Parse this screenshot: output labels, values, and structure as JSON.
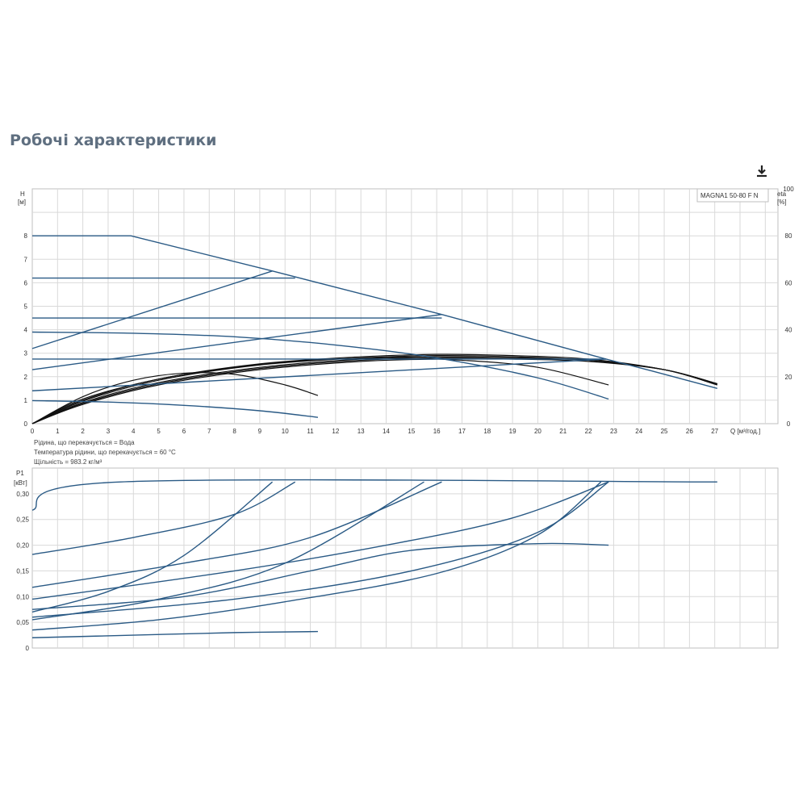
{
  "page": {
    "title": "Робочі характеристики",
    "download_icon": "download-icon"
  },
  "info_lines": [
    "Рідина, що перекачується = Вода",
    "Температура рідини, що перекачується = 60 °C",
    "Щільність = 983.2 кг/м³"
  ],
  "colors": {
    "curve_blue": "#2a5a85",
    "curve_black": "#111111",
    "grid": "#d9d9d9",
    "frame": "#bfbfbf"
  },
  "chart_data": [
    {
      "type": "line",
      "legend": "MAGNA1 50-80 F N",
      "ylabel": "H\n[м]",
      "y2label": "eta\n[%]",
      "xlabel": "Q [м³/год.]",
      "xlim": [
        0,
        29.5
      ],
      "ylim": [
        0,
        10
      ],
      "y2lim": [
        0,
        100
      ],
      "xticks": [
        0,
        1,
        2,
        3,
        4,
        5,
        6,
        7,
        8,
        9,
        10,
        11,
        12,
        13,
        14,
        15,
        16,
        17,
        18,
        19,
        20,
        21,
        22,
        23,
        24,
        25,
        26,
        27
      ],
      "yticks": [
        0,
        1,
        2,
        3,
        4,
        5,
        6,
        7,
        8
      ],
      "y2ticks": [
        0,
        20,
        40,
        60,
        80,
        100
      ],
      "grid": true,
      "head_curves": [
        {
          "name": "max",
          "points": [
            [
              0,
              8
            ],
            [
              3.9,
              8
            ],
            [
              9.5,
              6.5
            ],
            [
              16.2,
              4.65
            ],
            [
              22.7,
              2.75
            ],
            [
              24.5,
              2.25
            ],
            [
              27.1,
              1.5
            ]
          ]
        },
        {
          "name": "cp-6.2",
          "points": [
            [
              0,
              6.2
            ],
            [
              10.4,
              6.2
            ]
          ]
        },
        {
          "name": "cp-4.5",
          "points": [
            [
              0,
              4.5
            ],
            [
              16.2,
              4.5
            ]
          ]
        },
        {
          "name": "cp-2.75",
          "points": [
            [
              0,
              2.75
            ],
            [
              22.7,
              2.75
            ]
          ]
        },
        {
          "name": "pp-upper",
          "points": [
            [
              0,
              3.2
            ],
            [
              9.5,
              6.5
            ]
          ]
        },
        {
          "name": "pp-mid",
          "points": [
            [
              0,
              2.3
            ],
            [
              16.2,
              4.65
            ]
          ]
        },
        {
          "name": "pp-lower",
          "points": [
            [
              0,
              1.4
            ],
            [
              22.7,
              2.75
            ]
          ]
        },
        {
          "name": "min-3.9",
          "points": [
            [
              0,
              3.9
            ],
            [
              4,
              3.85
            ],
            [
              8,
              3.7
            ],
            [
              12,
              3.35
            ],
            [
              16,
              2.8
            ],
            [
              20,
              1.95
            ],
            [
              22.8,
              1.05
            ]
          ]
        },
        {
          "name": "min-1.0",
          "points": [
            [
              0,
              0.98
            ],
            [
              3,
              0.92
            ],
            [
              6,
              0.78
            ],
            [
              9,
              0.55
            ],
            [
              11.3,
              0.27
            ]
          ]
        }
      ],
      "eta_curves": [
        {
          "points": [
            [
              0,
              0
            ],
            [
              2,
              11.5
            ],
            [
              4,
              18.5
            ],
            [
              6,
              21.5
            ],
            [
              8,
              21
            ],
            [
              10,
              16.5
            ],
            [
              11.3,
              12
            ]
          ]
        },
        {
          "points": [
            [
              0,
              0
            ],
            [
              2,
              10.5
            ],
            [
              5,
              19
            ],
            [
              8,
              24
            ],
            [
              11,
              27
            ],
            [
              14,
              28
            ],
            [
              17,
              27
            ],
            [
              20,
              24
            ],
            [
              22.8,
              16.5
            ]
          ]
        },
        {
          "points": [
            [
              0,
              0
            ],
            [
              2,
              10
            ],
            [
              5,
              19
            ],
            [
              9,
              25.5
            ],
            [
              13,
              28.5
            ],
            [
              16,
              29.5
            ],
            [
              19,
              29
            ],
            [
              22,
              27.5
            ],
            [
              25,
              23
            ],
            [
              27.1,
              17
            ]
          ]
        },
        {
          "points": [
            [
              0,
              0
            ],
            [
              2,
              9.6
            ],
            [
              5,
              18.5
            ],
            [
              9,
              25
            ],
            [
              13,
              28
            ],
            [
              16,
              29
            ],
            [
              19,
              28.5
            ],
            [
              22,
              27
            ],
            [
              25,
              23
            ],
            [
              27.1,
              16.5
            ]
          ]
        },
        {
          "points": [
            [
              0,
              0
            ],
            [
              2,
              9
            ],
            [
              5,
              17.5
            ],
            [
              9,
              24
            ],
            [
              13,
              27.5
            ],
            [
              16,
              28.5
            ],
            [
              19,
              28
            ],
            [
              22,
              27
            ],
            [
              25,
              23
            ],
            [
              27.1,
              16.5
            ]
          ]
        },
        {
          "points": [
            [
              0,
              0
            ],
            [
              2,
              8.6
            ],
            [
              5,
              17
            ],
            [
              9,
              23.5
            ],
            [
              13,
              27
            ],
            [
              16,
              28
            ],
            [
              19,
              28
            ],
            [
              22,
              27
            ],
            [
              25,
              23
            ],
            [
              27.1,
              17
            ]
          ]
        },
        {
          "points": [
            [
              0,
              0
            ],
            [
              2,
              8.2
            ],
            [
              5,
              16.5
            ],
            [
              9,
              23
            ],
            [
              13,
              26.5
            ],
            [
              16,
              27.5
            ],
            [
              19,
              27.5
            ],
            [
              22,
              26.5
            ],
            [
              25,
              23
            ],
            [
              27.1,
              17
            ]
          ]
        }
      ]
    },
    {
      "type": "line",
      "ylabel": "P1\n[кВт]",
      "xlim": [
        0,
        29.5
      ],
      "ylim": [
        0,
        0.35
      ],
      "yticks": [
        "0",
        "0,05",
        "0,10",
        "0,15",
        "0,20",
        "0,25",
        "0,30"
      ],
      "ytick_values": [
        0,
        0.05,
        0.1,
        0.15,
        0.2,
        0.25,
        0.3
      ],
      "grid": true,
      "power_curves": [
        {
          "points": [
            [
              0,
              0.268
            ],
            [
              3.5,
              0.323
            ],
            [
              27.1,
              0.323
            ]
          ]
        },
        {
          "points": [
            [
              0,
              0.182
            ],
            [
              4,
              0.215
            ],
            [
              8,
              0.26
            ],
            [
              10.4,
              0.323
            ]
          ]
        },
        {
          "points": [
            [
              0,
              0.07
            ],
            [
              3,
              0.11
            ],
            [
              6,
              0.18
            ],
            [
              9.5,
              0.323
            ]
          ]
        },
        {
          "points": [
            [
              0,
              0.118
            ],
            [
              6,
              0.165
            ],
            [
              11,
              0.215
            ],
            [
              16.2,
              0.323
            ]
          ]
        },
        {
          "points": [
            [
              0,
              0.055
            ],
            [
              5,
              0.095
            ],
            [
              10,
              0.165
            ],
            [
              15.5,
              0.323
            ]
          ]
        },
        {
          "points": [
            [
              0,
              0.095
            ],
            [
              8,
              0.15
            ],
            [
              14,
              0.2
            ],
            [
              19,
              0.253
            ],
            [
              22.8,
              0.323
            ]
          ]
        },
        {
          "points": [
            [
              0,
              0.06
            ],
            [
              8,
              0.095
            ],
            [
              15,
              0.15
            ],
            [
              20,
              0.225
            ],
            [
              22.8,
              0.323
            ]
          ]
        },
        {
          "points": [
            [
              0,
              0.075
            ],
            [
              6,
              0.1
            ],
            [
              11,
              0.15
            ],
            [
              15,
              0.19
            ],
            [
              20,
              0.203
            ],
            [
              22.8,
              0.2
            ]
          ]
        },
        {
          "points": [
            [
              0,
              0.035
            ],
            [
              5,
              0.055
            ],
            [
              10,
              0.09
            ],
            [
              16,
              0.145
            ],
            [
              20,
              0.22
            ],
            [
              22.5,
              0.323
            ]
          ]
        },
        {
          "points": [
            [
              0,
              0.02
            ],
            [
              4,
              0.025
            ],
            [
              8,
              0.03
            ],
            [
              11.3,
              0.032
            ]
          ]
        }
      ]
    }
  ]
}
